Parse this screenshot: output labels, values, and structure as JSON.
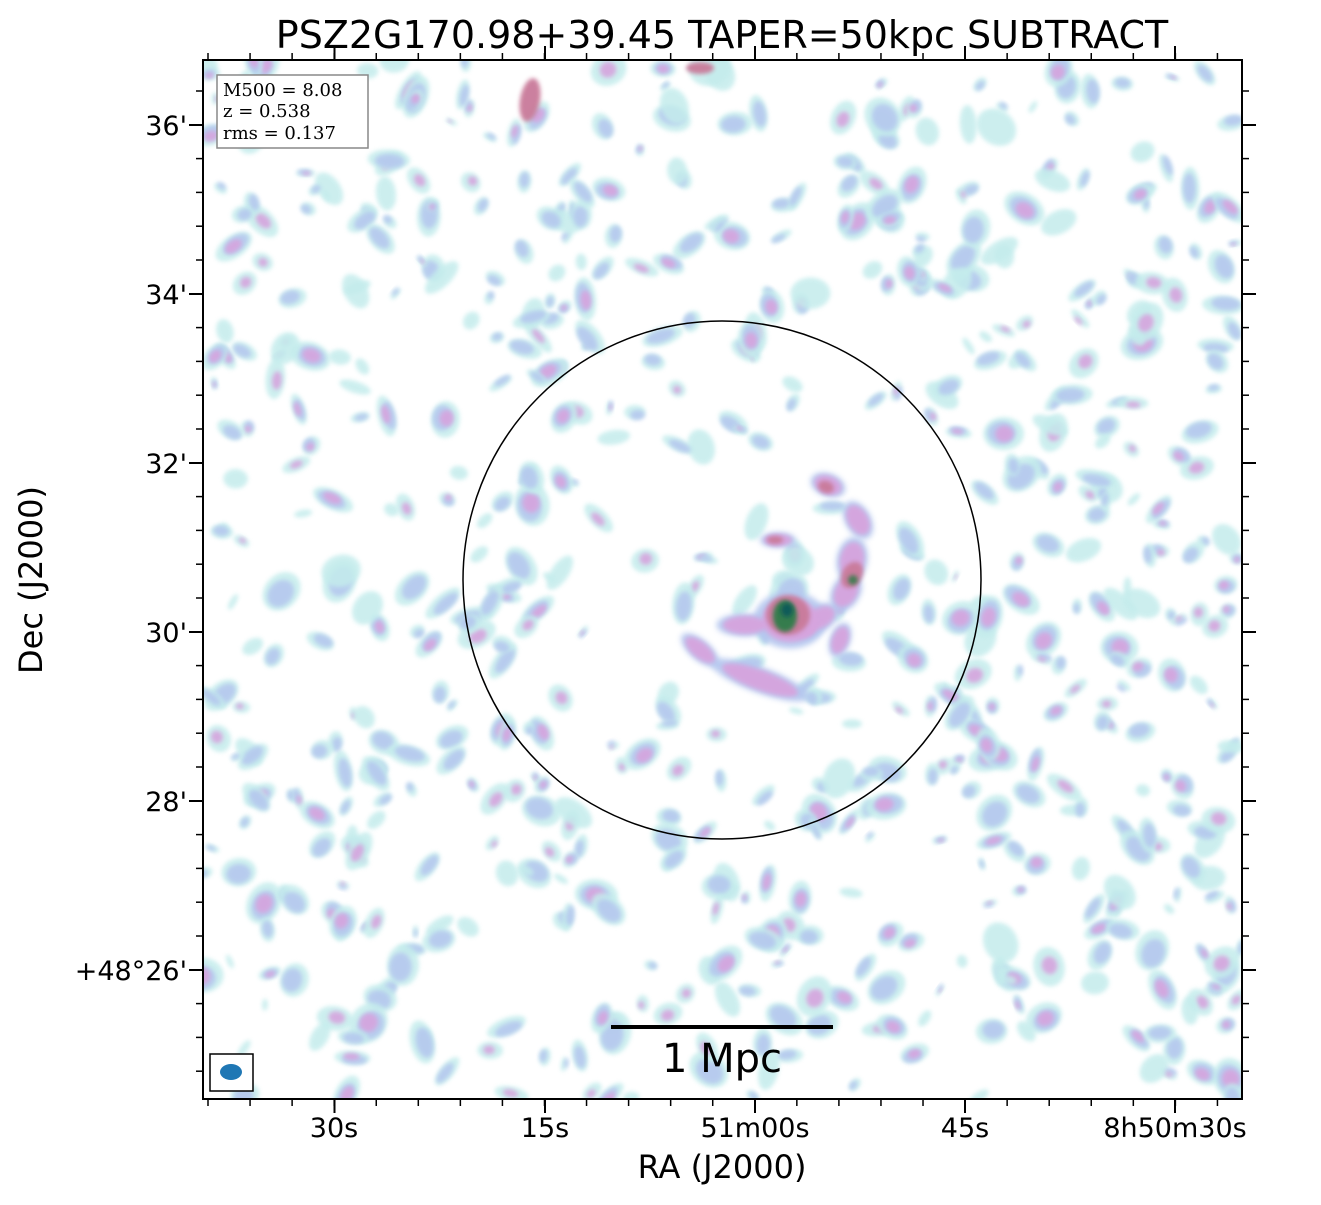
{
  "chart_data": {
    "type": "heatmap",
    "title": "PSZ2G170.98+39.45 TAPER=50kpc SUBTRACT",
    "xlabel": "RA (J2000)",
    "ylabel": "Dec (J2000)",
    "x_ticks": [
      {
        "label": "30s",
        "ra_sec_offset": 30
      },
      {
        "label": "15s",
        "ra_sec_offset": 15
      },
      {
        "label": "51m00s",
        "ra_sec_offset": 0
      },
      {
        "label": "45s",
        "ra_sec_offset": -15
      },
      {
        "label": "8h50m30s",
        "ra_sec_offset": -30
      }
    ],
    "y_ticks": [
      {
        "label": "36'",
        "dec_arcmin": 36
      },
      {
        "label": "34'",
        "dec_arcmin": 34
      },
      {
        "label": "32'",
        "dec_arcmin": 32
      },
      {
        "label": "30'",
        "dec_arcmin": 30
      },
      {
        "label": "28'",
        "dec_arcmin": 28
      },
      {
        "label": "+48°26'",
        "dec_arcmin": 26
      }
    ],
    "info_box": {
      "m500": "M500 = 8.08",
      "z": "z = 0.538",
      "rms": "rms = 0.137"
    },
    "scalebar_label": "1 Mpc",
    "colors": {
      "noise_low": "#c4ecec",
      "noise_mid": "#b4c6ee",
      "noise_high": "#d6a4de",
      "source": "#c97a9a",
      "source_peak": "#2e7d4a",
      "beam": "#1f77b4"
    }
  }
}
